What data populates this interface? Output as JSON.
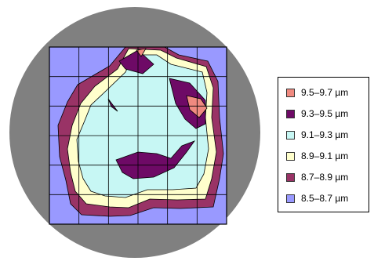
{
  "chart_data": {
    "type": "heatmap",
    "title": "",
    "xlabel": "",
    "ylabel": "",
    "wafer_color": "#808080",
    "grid_divisions": 6,
    "legend_placement": "right",
    "legend": [
      {
        "label": "9.5–9.7 µm",
        "color": "#F08A80"
      },
      {
        "label": "9.3–9.5 µm",
        "color": "#6E0A66"
      },
      {
        "label": "9.1–9.3 µm",
        "color": "#C7F7F4"
      },
      {
        "label": "8.9–9.1 µm",
        "color": "#FFFFCC"
      },
      {
        "label": "8.7–8.9 µm",
        "color": "#993366"
      },
      {
        "label": "8.5–8.7 µm",
        "color": "#9999FF"
      }
    ],
    "zones": [
      {
        "range": "8.5–8.7 µm",
        "color": "#9999FF",
        "region": "outer edge"
      },
      {
        "range": "8.7–8.9 µm",
        "color": "#993366",
        "region": "outer ring"
      },
      {
        "range": "8.9–9.1 µm",
        "color": "#FFFFCC",
        "region": "inner ring"
      },
      {
        "range": "9.1–9.3 µm",
        "color": "#C7F7F4",
        "region": "center"
      },
      {
        "range": "9.3–9.5 µm",
        "color": "#6E0A66",
        "region": "spots"
      },
      {
        "range": "9.5–9.7 µm",
        "color": "#F08A80",
        "region": "peak"
      }
    ]
  }
}
